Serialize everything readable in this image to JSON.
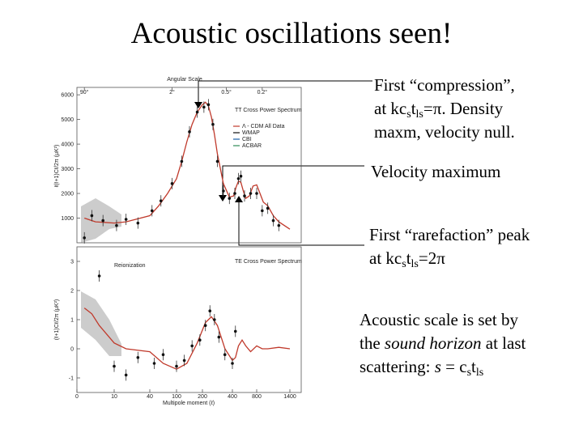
{
  "title": "Acoustic oscillations seen!",
  "annotations": [
    {
      "lines": [
        [
          "First “compression”,"
        ],
        [
          "at kc",
          "s",
          "t",
          "ls",
          "=π.  Density"
        ],
        [
          "maxm, velocity null."
        ]
      ]
    },
    {
      "lines": [
        [
          "Velocity maximum"
        ]
      ]
    },
    {
      "lines": [
        [
          "First “rarefaction” peak"
        ],
        [
          "at kc",
          "s",
          "t",
          "ls",
          "=2π"
        ]
      ]
    },
    {
      "lines": [
        [
          "Acoustic scale is set by"
        ],
        [
          "the ",
          "sound horizon",
          " at last"
        ],
        [
          "scattering:  ",
          "s",
          " = c",
          "s",
          "t",
          "ls"
        ]
      ]
    }
  ],
  "figure": {
    "angular_label": "Angular Scale",
    "angular_ticks": [
      {
        "value": 90,
        "label": "90°"
      },
      {
        "value": 2,
        "label": "2°"
      },
      {
        "value": 0.5,
        "label": "0.5°"
      },
      {
        "value": 0.2,
        "label": "0.2°"
      }
    ],
    "xlabel": "Multipole moment (ℓ)",
    "xticks": [
      0,
      10,
      40,
      100,
      200,
      400,
      800,
      1400
    ],
    "legend": [
      "Λ - CDM All Data",
      "WMAP",
      "CBI",
      "ACBAR"
    ],
    "panels": [
      {
        "title": "TT Cross Power Spectrum",
        "ylabel": "ℓ(ℓ+1)Cℓ/2π (μK²)",
        "ylim": [
          0,
          6300
        ],
        "yticks": [
          1000,
          2000,
          3000,
          4000,
          5000,
          6000
        ],
        "model": {
          "x": [
            2,
            5,
            10,
            20,
            40,
            60,
            80,
            100,
            120,
            140,
            160,
            180,
            200,
            220,
            240,
            260,
            280,
            300,
            340,
            380,
            420,
            460,
            500,
            540,
            580,
            620,
            680,
            740,
            800,
            860,
            920,
            1000,
            1100,
            1200,
            1400
          ],
          "values": [
            1000,
            850,
            800,
            850,
            1100,
            1500,
            2000,
            2600,
            3300,
            4100,
            4800,
            5300,
            5600,
            5700,
            5550,
            5100,
            4400,
            3600,
            2400,
            1850,
            1900,
            2250,
            2500,
            2450,
            2100,
            1800,
            1900,
            2300,
            2350,
            2000,
            1650,
            1500,
            1100,
            850,
            550
          ]
        },
        "points": {
          "x": [
            2,
            4,
            7,
            12,
            20,
            30,
            45,
            65,
            90,
            120,
            150,
            180,
            210,
            240,
            270,
            300,
            340,
            380,
            440,
            500,
            540,
            600,
            700,
            800,
            900,
            1000,
            1100,
            1200
          ],
          "values": [
            200,
            1100,
            900,
            700,
            950,
            800,
            1300,
            1700,
            2400,
            3300,
            4500,
            5300,
            5500,
            5600,
            4800,
            3300,
            2100,
            1800,
            2000,
            2600,
            2700,
            1900,
            2000,
            2000,
            1300,
            1400,
            900,
            700
          ]
        }
      },
      {
        "title": "TE Cross Power Spectrum",
        "ylabel": "(ℓ+1)Cℓ/2π (μK²)",
        "note": "Reionization",
        "ylim": [
          -1.5,
          3.5
        ],
        "yticks": [
          -1,
          0,
          1,
          2,
          3
        ],
        "model": {
          "x": [
            2,
            4,
            6,
            10,
            20,
            40,
            70,
            100,
            140,
            180,
            220,
            260,
            300,
            350,
            400,
            450,
            500,
            560,
            620,
            700,
            800,
            900,
            1000,
            1200,
            1400
          ],
          "values": [
            1.4,
            1.2,
            0.8,
            0.2,
            0.0,
            -0.1,
            -0.5,
            -0.7,
            -0.5,
            0.2,
            0.9,
            1.1,
            0.8,
            0.0,
            -0.4,
            -0.3,
            0.1,
            0.3,
            0.1,
            -0.1,
            0.1,
            0.0,
            0.0,
            0.05,
            0.0
          ]
        },
        "points": {
          "x": [
            6,
            10,
            20,
            30,
            50,
            70,
            100,
            130,
            160,
            190,
            220,
            250,
            280,
            310,
            350,
            400,
            450
          ],
          "values": [
            2.5,
            -0.6,
            -0.9,
            -0.3,
            -0.5,
            -0.2,
            -0.6,
            -0.4,
            0.1,
            0.3,
            0.8,
            1.3,
            1.0,
            0.4,
            -0.2,
            -0.5,
            0.6
          ]
        }
      }
    ]
  }
}
